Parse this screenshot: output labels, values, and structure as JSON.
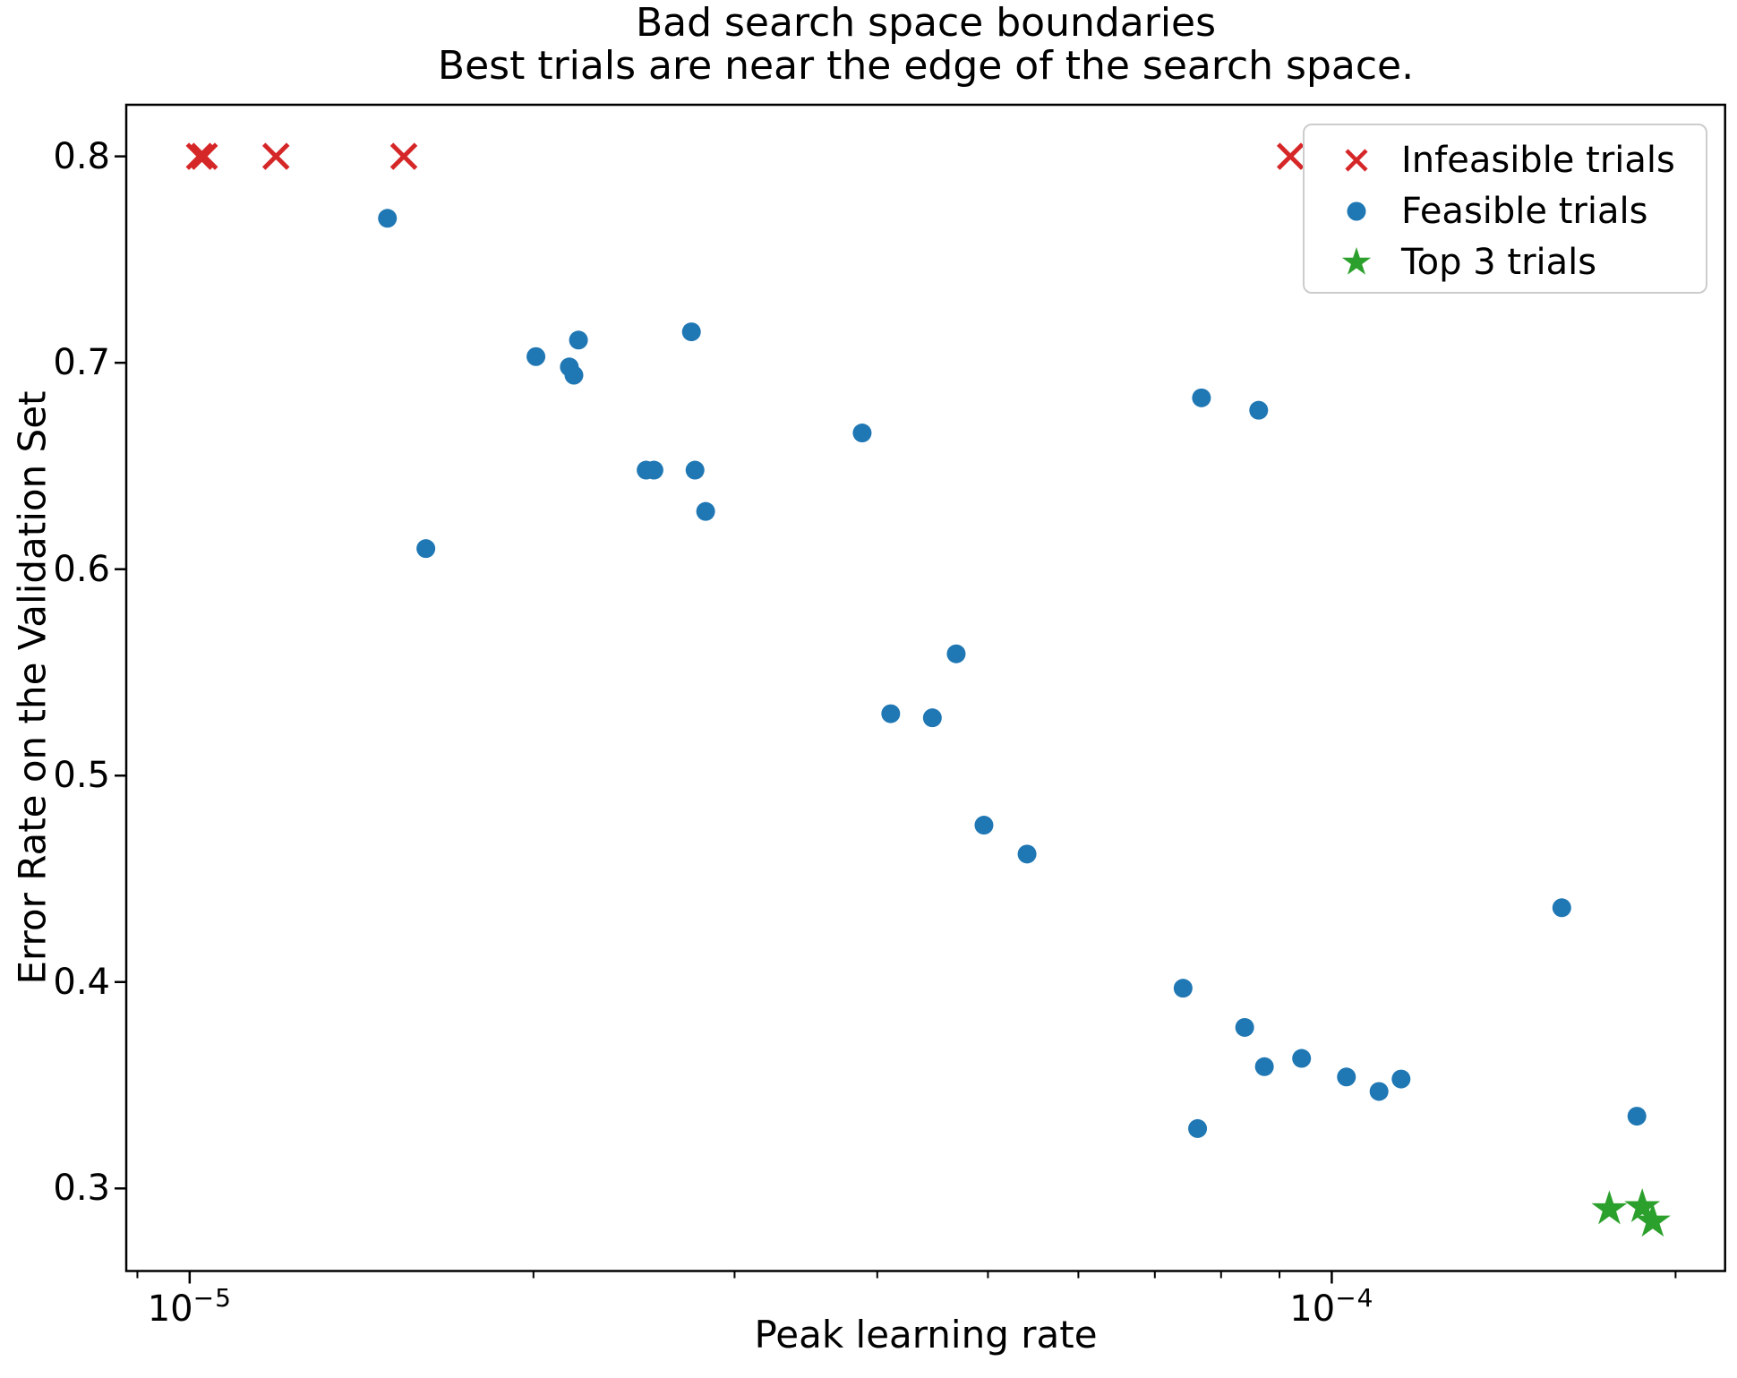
{
  "chart_data": {
    "type": "scatter",
    "title_lines": [
      "Bad search space boundaries",
      "Best trials are near the edge of the search space."
    ],
    "xlabel": "Peak learning rate",
    "ylabel": "Error Rate on the Validation Set",
    "xscale": "log",
    "yscale": "linear",
    "xlim": [
      8.8e-06,
      0.000221
    ],
    "ylim": [
      0.26,
      0.825
    ],
    "grid": false,
    "legend_position": "upper right",
    "yticks": [
      {
        "value": 0.8,
        "label": "0.8"
      },
      {
        "value": 0.7,
        "label": "0.7"
      },
      {
        "value": 0.6,
        "label": "0.6"
      },
      {
        "value": 0.5,
        "label": "0.5"
      },
      {
        "value": 0.4,
        "label": "0.4"
      },
      {
        "value": 0.3,
        "label": "0.3"
      }
    ],
    "xticks_major": [
      {
        "value": 1e-05,
        "base": "10",
        "exp": "−5"
      },
      {
        "value": 0.0001,
        "base": "10",
        "exp": "−4"
      }
    ],
    "xticks_minor": [
      9e-06,
      2e-05,
      3e-05,
      4e-05,
      5e-05,
      6e-05,
      7e-05,
      8e-05,
      9e-05,
      0.0002
    ],
    "series": [
      {
        "name": "Infeasible trials",
        "marker": "x",
        "color": "#d62728",
        "points": [
          [
            1.02e-05,
            0.8
          ],
          [
            1.03e-05,
            0.8
          ],
          [
            1.19e-05,
            0.8
          ],
          [
            1.54e-05,
            0.8
          ],
          [
            9.2e-05,
            0.8
          ]
        ]
      },
      {
        "name": "Feasible trials",
        "marker": "circle",
        "color": "#1f77b4",
        "points": [
          [
            1.49e-05,
            0.77
          ],
          [
            2.01e-05,
            0.703
          ],
          [
            2.19e-05,
            0.711
          ],
          [
            2.15e-05,
            0.698
          ],
          [
            2.17e-05,
            0.694
          ],
          [
            2.75e-05,
            0.715
          ],
          [
            2.51e-05,
            0.648
          ],
          [
            2.55e-05,
            0.648
          ],
          [
            2.77e-05,
            0.648
          ],
          [
            2.83e-05,
            0.628
          ],
          [
            1.61e-05,
            0.61
          ],
          [
            3.88e-05,
            0.666
          ],
          [
            7.69e-05,
            0.683
          ],
          [
            8.63e-05,
            0.677
          ],
          [
            4.69e-05,
            0.559
          ],
          [
            4.11e-05,
            0.53
          ],
          [
            4.47e-05,
            0.528
          ],
          [
            4.96e-05,
            0.476
          ],
          [
            5.41e-05,
            0.462
          ],
          [
            0.000159,
            0.436
          ],
          [
            7.41e-05,
            0.397
          ],
          [
            8.39e-05,
            0.378
          ],
          [
            8.73e-05,
            0.359
          ],
          [
            9.41e-05,
            0.363
          ],
          [
            0.000103,
            0.354
          ],
          [
            0.00011,
            0.347
          ],
          [
            0.000115,
            0.353
          ],
          [
            7.63e-05,
            0.329
          ],
          [
            0.000185,
            0.335
          ]
        ]
      },
      {
        "name": "Top 3 trials",
        "marker": "star",
        "color": "#2ca02c",
        "points": [
          [
            0.000175,
            0.29
          ],
          [
            0.000187,
            0.291
          ],
          [
            0.000191,
            0.284
          ]
        ]
      }
    ]
  }
}
